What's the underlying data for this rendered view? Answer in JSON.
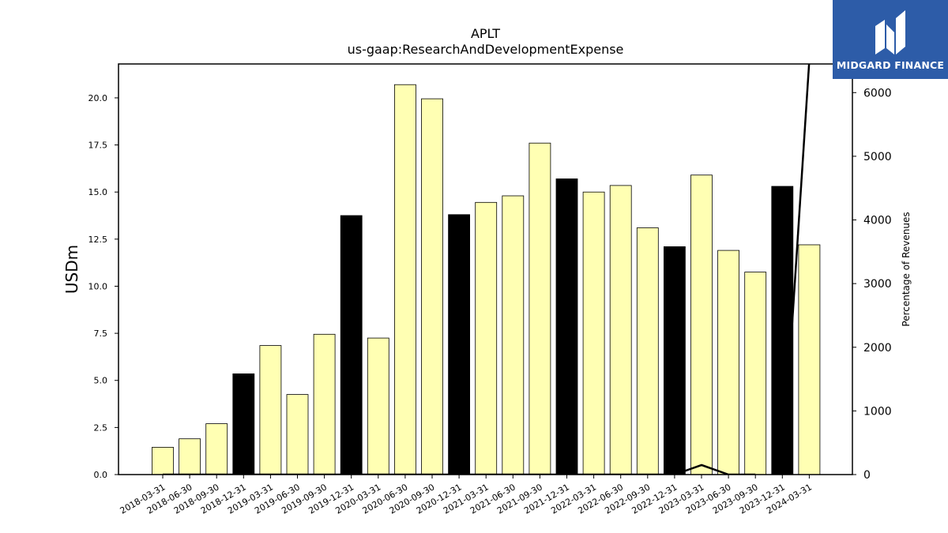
{
  "chart_data": {
    "type": "bar",
    "title": "APLT",
    "subtitle": "us-gaap:ResearchAndDevelopmentExpense",
    "ylabel": "USDm",
    "y2label": "Percentage of Revenues",
    "ylim": [
      0,
      21.8
    ],
    "y2lim": [
      0,
      6450
    ],
    "yticks": [
      "0.0",
      "2.5",
      "5.0",
      "7.5",
      "10.0",
      "12.5",
      "15.0",
      "17.5",
      "20.0"
    ],
    "y2ticks": [
      "0",
      "1000",
      "2000",
      "3000",
      "4000",
      "5000",
      "6000"
    ],
    "categories": [
      "2018-03-31",
      "2018-06-30",
      "2018-09-30",
      "2018-12-31",
      "2019-03-31",
      "2019-06-30",
      "2019-09-30",
      "2019-12-31",
      "2020-03-31",
      "2020-06-30",
      "2020-09-30",
      "2020-12-31",
      "2021-03-31",
      "2021-06-30",
      "2021-09-30",
      "2021-12-31",
      "2022-03-31",
      "2022-06-30",
      "2022-09-30",
      "2022-12-31",
      "2023-03-31",
      "2023-06-30",
      "2023-09-30",
      "2023-12-31",
      "2024-03-31"
    ],
    "values": [
      1.45,
      1.9,
      2.7,
      5.35,
      6.85,
      4.25,
      7.45,
      13.75,
      7.25,
      20.7,
      19.95,
      13.8,
      14.45,
      14.8,
      17.6,
      15.7,
      15.0,
      15.35,
      13.1,
      12.1,
      15.9,
      11.9,
      10.75,
      15.3,
      12.2
    ],
    "fiscal_year_end": [
      false,
      false,
      false,
      true,
      false,
      false,
      false,
      true,
      false,
      false,
      false,
      true,
      false,
      false,
      false,
      true,
      false,
      false,
      false,
      true,
      false,
      false,
      false,
      true,
      false
    ],
    "colors": {
      "quarter": "#ffffb3",
      "year_end": "#000000",
      "line": "#000000",
      "edge": "#000000"
    },
    "series_line": {
      "axis": "right",
      "values": [
        0,
        0,
        0,
        0,
        0,
        0,
        0,
        0,
        0,
        0,
        0,
        0,
        0,
        0,
        0,
        0,
        0,
        0,
        0,
        0,
        150,
        0,
        0,
        0,
        6500
      ],
      "segments": [
        [
          0,
          22
        ],
        [
          23,
          24
        ]
      ]
    },
    "grid": false,
    "legend": "none"
  },
  "logo": {
    "text": "MIDGARD FINANCE",
    "icon": "midgard-logo-icon"
  }
}
